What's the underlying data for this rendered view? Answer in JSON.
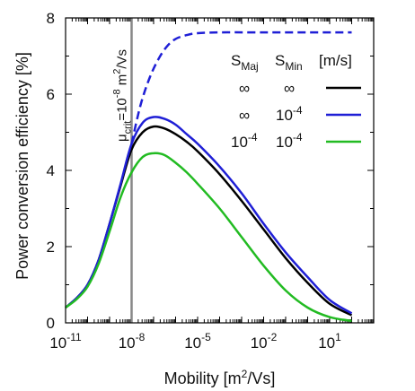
{
  "chart_data": {
    "type": "line",
    "xlabel": {
      "main": "Mobility [m",
      "sup": "2",
      "end": "/Vs]"
    },
    "ylabel": "Power conversion efficiency [%]",
    "x_scale": "log",
    "xlim": [
      1e-11,
      1000
    ],
    "ylim": [
      0,
      8
    ],
    "x_ticks": [
      {
        "value": 1e-11,
        "base": "10",
        "exp": "-11"
      },
      {
        "value": 1e-08,
        "base": "10",
        "exp": "-8"
      },
      {
        "value": 1e-05,
        "base": "10",
        "exp": "-5"
      },
      {
        "value": 0.01,
        "base": "10",
        "exp": "-2"
      },
      {
        "value": 10,
        "base": "10",
        "exp": "1"
      }
    ],
    "y_ticks": [
      "0",
      "2",
      "4",
      "6",
      "8"
    ],
    "vline": {
      "x": 1e-08,
      "label": {
        "pre": "μ",
        "sub": "crit",
        "mid": "=10",
        "sup": "-8",
        "post": " m",
        "sup2": "2",
        "end": "/Vs"
      },
      "color": "#888888"
    },
    "legend": {
      "placement": "top-right",
      "header": {
        "smaj": "S",
        "smaj_sub": "Maj",
        "smin": "S",
        "smin_sub": "Min",
        "unit": "[m/s]"
      },
      "rows": [
        {
          "smaj": "∞",
          "smin": "∞",
          "color": "#000000"
        },
        {
          "smaj": "∞",
          "smin": "10",
          "smin_exp": "-4",
          "color": "#1f1fd6"
        },
        {
          "smaj": "10",
          "smaj_exp": "-4",
          "smin": "10",
          "smin_exp": "-4",
          "color": "#22bb22"
        }
      ]
    },
    "series": [
      {
        "color": "#000000",
        "dash": false,
        "points": [
          [
            -11,
            0.4
          ],
          [
            -10.5,
            0.65
          ],
          [
            -10,
            1.0
          ],
          [
            -9.5,
            1.65
          ],
          [
            -9,
            2.6
          ],
          [
            -8.5,
            3.6
          ],
          [
            -8,
            4.55
          ],
          [
            -7.5,
            5.0
          ],
          [
            -7,
            5.15
          ],
          [
            -6.5,
            5.1
          ],
          [
            -6,
            4.95
          ],
          [
            -5.5,
            4.75
          ],
          [
            -5,
            4.5
          ],
          [
            -4,
            3.9
          ],
          [
            -3,
            3.2
          ],
          [
            -2,
            2.45
          ],
          [
            -1,
            1.7
          ],
          [
            0,
            1.05
          ],
          [
            1,
            0.5
          ],
          [
            2,
            0.2
          ]
        ]
      },
      {
        "color": "#1f1fd6",
        "dash": false,
        "points": [
          [
            -11,
            0.4
          ],
          [
            -10.5,
            0.65
          ],
          [
            -10,
            1.0
          ],
          [
            -9.5,
            1.65
          ],
          [
            -9,
            2.6
          ],
          [
            -8.5,
            3.65
          ],
          [
            -8,
            4.7
          ],
          [
            -7.5,
            5.25
          ],
          [
            -7,
            5.4
          ],
          [
            -6.5,
            5.35
          ],
          [
            -6,
            5.2
          ],
          [
            -5.5,
            4.95
          ],
          [
            -5,
            4.7
          ],
          [
            -4,
            4.1
          ],
          [
            -3,
            3.4
          ],
          [
            -2,
            2.6
          ],
          [
            -1,
            1.85
          ],
          [
            0,
            1.2
          ],
          [
            1,
            0.6
          ],
          [
            2,
            0.25
          ]
        ]
      },
      {
        "color": "#22bb22",
        "dash": false,
        "points": [
          [
            -11,
            0.4
          ],
          [
            -10.5,
            0.62
          ],
          [
            -10,
            0.95
          ],
          [
            -9.5,
            1.55
          ],
          [
            -9,
            2.4
          ],
          [
            -8.5,
            3.3
          ],
          [
            -8,
            3.95
          ],
          [
            -7.5,
            4.35
          ],
          [
            -7,
            4.45
          ],
          [
            -6.5,
            4.4
          ],
          [
            -6,
            4.2
          ],
          [
            -5.5,
            3.95
          ],
          [
            -5,
            3.65
          ],
          [
            -4,
            3.0
          ],
          [
            -3,
            2.25
          ],
          [
            -2,
            1.5
          ],
          [
            -1,
            0.85
          ],
          [
            0,
            0.4
          ],
          [
            1,
            0.15
          ],
          [
            2,
            0.05
          ]
        ]
      },
      {
        "color": "#1f1fd6",
        "dash": true,
        "points": [
          [
            -8,
            4.7
          ],
          [
            -7.6,
            5.7
          ],
          [
            -7.2,
            6.4
          ],
          [
            -6.8,
            6.9
          ],
          [
            -6.4,
            7.25
          ],
          [
            -6,
            7.45
          ],
          [
            -5.5,
            7.55
          ],
          [
            -5,
            7.6
          ],
          [
            -4,
            7.62
          ],
          [
            -2,
            7.62
          ],
          [
            0,
            7.62
          ],
          [
            2,
            7.62
          ]
        ]
      }
    ]
  }
}
